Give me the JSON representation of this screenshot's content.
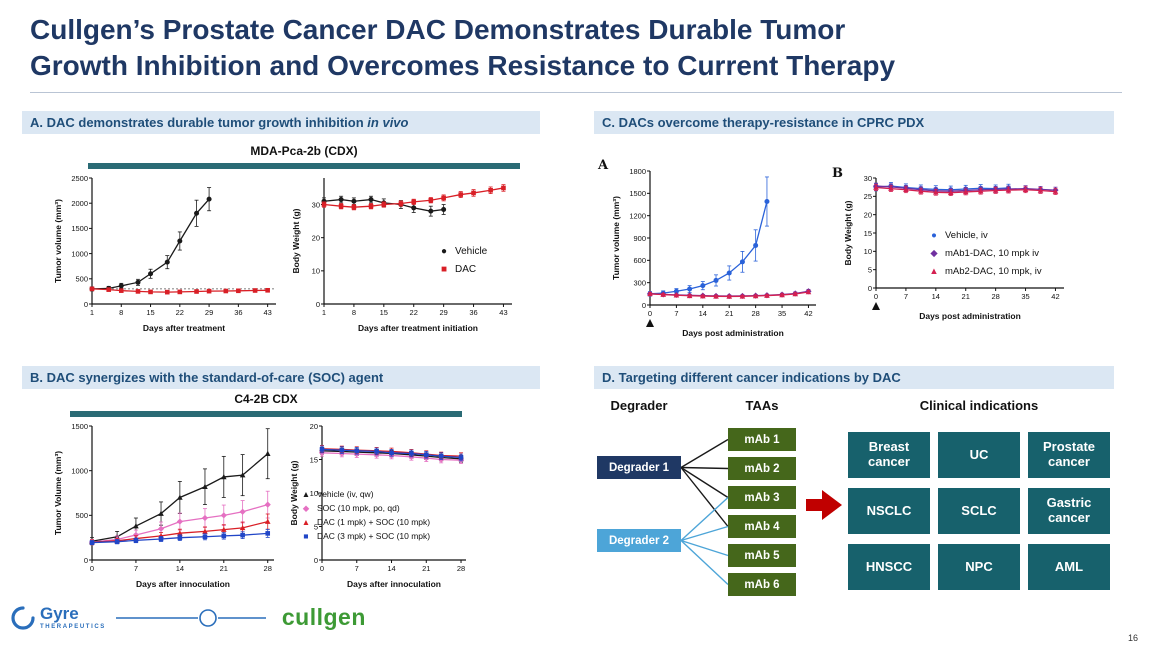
{
  "slide": {
    "title_line1": "Cullgen’s Prostate Cancer DAC Demonstrates Durable Tumor",
    "title_line2": "Growth Inhibition and Overcomes Resistance to Current Therapy"
  },
  "panels": {
    "a": {
      "header": "A. DAC demonstrates durable tumor growth inhibition ",
      "header_italic": "in vivo",
      "chart_title": "MDA-Pca-2b (CDX)",
      "legend": [
        {
          "marker": "●",
          "color": "#1a1a1a",
          "label": "Vehicle"
        },
        {
          "marker": "■",
          "color": "#d91f26",
          "label": "DAC"
        }
      ]
    },
    "b": {
      "header": "B. DAC synergizes with the standard-of-care (SOC) agent",
      "chart_title": "C4-2B CDX",
      "legend": [
        {
          "marker": "▲",
          "color": "#1a1a1a",
          "label": "Vehicle (iv, qw)"
        },
        {
          "marker": "◆",
          "color": "#e570c2",
          "label": "SOC (10 mpk, po, qd)"
        },
        {
          "marker": "▲",
          "color": "#d91f26",
          "label": "DAC (1 mpk) + SOC (10 mpk)"
        },
        {
          "marker": "■",
          "color": "#2146c7",
          "label": "DAC (3 mpk) + SOC (10 mpk)"
        }
      ]
    },
    "c": {
      "header": "C. DACs overcome therapy-resistance in CPRC PDX",
      "sub_label_a": "A",
      "sub_label_b": "B",
      "legend": [
        {
          "marker": "●",
          "color": "#2a62d9",
          "label": "Vehicle, iv"
        },
        {
          "marker": "◆",
          "color": "#7030a0",
          "label": "mAb1-DAC, 10 mpk iv"
        },
        {
          "marker": "▲",
          "color": "#d42050",
          "label": "mAb2-DAC, 10 mpk, iv"
        }
      ]
    },
    "d": {
      "header": "D. Targeting different cancer indications by DAC"
    }
  },
  "chart_data": [
    {
      "type": "line",
      "panel": "A",
      "xlabel": "Days after treatment",
      "ylabel": "Tumor volume (mm³)",
      "xlim": [
        1,
        45
      ],
      "xticks": [
        1,
        8,
        15,
        22,
        29,
        36,
        43
      ],
      "ylim": [
        0,
        2500
      ],
      "yticks": [
        0,
        500,
        1000,
        1500,
        2000,
        2500
      ],
      "ref_line_y": 300,
      "m": {
        "l": 40,
        "r": 8,
        "t": 8,
        "b": 30
      },
      "series": [
        {
          "name": "Vehicle",
          "color": "#1a1a1a",
          "marker": "circle",
          "x": [
            1,
            5,
            8,
            12,
            15,
            19,
            22,
            26,
            29
          ],
          "y": [
            300,
            310,
            360,
            430,
            600,
            830,
            1250,
            1800,
            2080
          ],
          "err": [
            40,
            40,
            50,
            60,
            90,
            130,
            180,
            260,
            230
          ]
        },
        {
          "name": "DAC",
          "color": "#d91f26",
          "marker": "square",
          "x": [
            1,
            5,
            8,
            12,
            15,
            19,
            22,
            26,
            29,
            33,
            36,
            40,
            43
          ],
          "y": [
            300,
            285,
            265,
            250,
            240,
            235,
            240,
            248,
            255,
            258,
            262,
            268,
            272
          ],
          "err": [
            30,
            25,
            22,
            20,
            18,
            18,
            18,
            18,
            20,
            20,
            22,
            22,
            24
          ]
        }
      ]
    },
    {
      "type": "line",
      "panel": "A",
      "xlabel": "Days after treatment initiation",
      "ylabel": "Body Weight (g)",
      "xlim": [
        1,
        45
      ],
      "xticks": [
        1,
        8,
        15,
        22,
        29,
        36,
        43
      ],
      "ylim": [
        0,
        38
      ],
      "yticks": [
        0,
        10,
        20,
        30
      ],
      "m": {
        "l": 34,
        "r": 8,
        "t": 8,
        "b": 30
      },
      "series": [
        {
          "name": "Vehicle",
          "color": "#1a1a1a",
          "marker": "circle",
          "x": [
            1,
            5,
            8,
            12,
            15,
            19,
            22,
            26,
            29
          ],
          "y": [
            31,
            31.5,
            31,
            31.5,
            30.5,
            30,
            29,
            28,
            28.5
          ],
          "err": [
            1,
            1,
            1,
            1,
            1.2,
            1.2,
            1.4,
            1.5,
            1.5
          ]
        },
        {
          "name": "DAC",
          "color": "#d91f26",
          "marker": "square",
          "x": [
            1,
            5,
            8,
            12,
            15,
            19,
            22,
            26,
            29,
            33,
            36,
            40,
            43
          ],
          "y": [
            30,
            29.5,
            29.2,
            29.5,
            30,
            30.3,
            30.8,
            31.3,
            32,
            33,
            33.5,
            34.3,
            35
          ],
          "err": [
            0.8,
            0.8,
            0.8,
            0.8,
            0.8,
            0.8,
            0.8,
            0.8,
            0.9,
            0.9,
            1,
            1,
            1
          ]
        }
      ]
    },
    {
      "type": "line",
      "panel": "B",
      "xlabel": "Days after innoculation",
      "ylabel": "Tumor Volume (mm³)",
      "xlim": [
        0,
        29
      ],
      "xticks": [
        0,
        7,
        14,
        21,
        28
      ],
      "ylim": [
        0,
        1500
      ],
      "yticks": [
        0,
        500,
        1000,
        1500
      ],
      "m": {
        "l": 40,
        "r": 8,
        "t": 8,
        "b": 30
      },
      "series": [
        {
          "name": "Vehicle (iv, qw)",
          "color": "#1a1a1a",
          "marker": "triangle",
          "x": [
            0,
            4,
            7,
            11,
            14,
            18,
            21,
            24,
            28
          ],
          "y": [
            210,
            260,
            380,
            520,
            700,
            820,
            930,
            950,
            1190
          ],
          "err": [
            40,
            60,
            90,
            130,
            180,
            200,
            230,
            230,
            280
          ]
        },
        {
          "name": "SOC (10 mpk, po, qd)",
          "color": "#e570c2",
          "marker": "diamond",
          "x": [
            0,
            4,
            7,
            11,
            14,
            18,
            21,
            24,
            28
          ],
          "y": [
            200,
            230,
            280,
            350,
            430,
            470,
            500,
            540,
            620
          ],
          "err": [
            30,
            40,
            55,
            75,
            95,
            105,
            115,
            125,
            150
          ]
        },
        {
          "name": "DAC (1 mpk) + SOC (10 mpk)",
          "color": "#d91f26",
          "marker": "triangle",
          "x": [
            0,
            4,
            7,
            11,
            14,
            18,
            21,
            24,
            28
          ],
          "y": [
            200,
            215,
            240,
            270,
            300,
            320,
            340,
            360,
            430
          ],
          "err": [
            25,
            28,
            32,
            38,
            45,
            50,
            55,
            65,
            85
          ]
        },
        {
          "name": "DAC (3 mpk) + SOC (10 mpk)",
          "color": "#2146c7",
          "marker": "square",
          "x": [
            0,
            4,
            7,
            11,
            14,
            18,
            21,
            24,
            28
          ],
          "y": [
            195,
            205,
            220,
            235,
            250,
            260,
            270,
            278,
            298
          ],
          "err": [
            22,
            24,
            26,
            28,
            32,
            34,
            36,
            38,
            45
          ]
        }
      ]
    },
    {
      "type": "line",
      "panel": "B",
      "xlabel": "Days after innoculation",
      "ylabel": "Body Weight (g)",
      "xlim": [
        0,
        29
      ],
      "xticks": [
        0,
        7,
        14,
        21,
        28
      ],
      "ylim": [
        0,
        20
      ],
      "yticks": [
        0,
        5,
        10,
        15,
        20
      ],
      "m": {
        "l": 34,
        "r": 8,
        "t": 8,
        "b": 30
      },
      "series": [
        {
          "name": "Vehicle (iv, qw)",
          "color": "#1a1a1a",
          "marker": "triangle",
          "x": [
            0,
            4,
            7,
            11,
            14,
            18,
            21,
            24,
            28
          ],
          "y": [
            16.3,
            16.2,
            16.1,
            16,
            15.9,
            15.7,
            15.5,
            15.3,
            15.1
          ],
          "err": [
            0.5,
            0.5,
            0.5,
            0.5,
            0.5,
            0.5,
            0.5,
            0.5,
            0.5
          ]
        },
        {
          "name": "SOC (10 mpk, po, qd)",
          "color": "#e570c2",
          "marker": "diamond",
          "x": [
            0,
            4,
            7,
            11,
            14,
            18,
            21,
            24,
            28
          ],
          "y": [
            16,
            15.9,
            15.8,
            15.7,
            15.6,
            15.4,
            15.2,
            15,
            14.9
          ],
          "err": [
            0.5,
            0.5,
            0.5,
            0.5,
            0.5,
            0.5,
            0.5,
            0.5,
            0.5
          ]
        },
        {
          "name": "DAC (1 mpk) + SOC (10 mpk)",
          "color": "#d91f26",
          "marker": "triangle",
          "x": [
            0,
            4,
            7,
            11,
            14,
            18,
            21,
            24,
            28
          ],
          "y": [
            16.6,
            16.5,
            16.4,
            16.3,
            16.2,
            16,
            15.8,
            15.6,
            15.5
          ],
          "err": [
            0.5,
            0.5,
            0.5,
            0.5,
            0.5,
            0.5,
            0.5,
            0.5,
            0.5
          ]
        },
        {
          "name": "DAC (3 mpk) + SOC (10 mpk)",
          "color": "#2146c7",
          "marker": "square",
          "x": [
            0,
            4,
            7,
            11,
            14,
            18,
            21,
            24,
            28
          ],
          "y": [
            16.5,
            16.4,
            16.3,
            16.2,
            16,
            15.9,
            15.7,
            15.5,
            15.3
          ],
          "err": [
            0.5,
            0.5,
            0.5,
            0.5,
            0.5,
            0.5,
            0.5,
            0.5,
            0.5
          ]
        }
      ]
    },
    {
      "type": "line",
      "panel": "C",
      "sub_label": "A",
      "xlabel": "Days post administration",
      "ylabel": "Tumor volume (mm³)",
      "xlim": [
        0,
        44
      ],
      "xticks": [
        0,
        7,
        14,
        21,
        28,
        35,
        42
      ],
      "ylim": [
        0,
        1800
      ],
      "yticks": [
        0,
        300,
        600,
        900,
        1200,
        1500,
        1800
      ],
      "dose_arrow_x": 0,
      "m": {
        "l": 40,
        "r": 8,
        "t": 8,
        "b": 34
      },
      "series": [
        {
          "name": "Vehicle, iv",
          "color": "#2a62d9",
          "marker": "circle",
          "x": [
            0,
            3.5,
            7,
            10.5,
            14,
            17.5,
            21,
            24.5,
            28,
            31
          ],
          "y": [
            150,
            160,
            185,
            215,
            260,
            330,
            430,
            580,
            800,
            1390
          ],
          "err": [
            30,
            30,
            35,
            45,
            55,
            75,
            95,
            140,
            210,
            330
          ]
        },
        {
          "name": "mAb1-DAC, 10 mpk iv",
          "color": "#7030a0",
          "marker": "diamond",
          "x": [
            0,
            3.5,
            7,
            10.5,
            14,
            17.5,
            21,
            24.5,
            28,
            31,
            35,
            38.5,
            42
          ],
          "y": [
            150,
            142,
            135,
            130,
            126,
            122,
            120,
            122,
            126,
            131,
            140,
            155,
            185
          ],
          "err": [
            15,
            15,
            15,
            15,
            15,
            15,
            15,
            15,
            15,
            15,
            18,
            20,
            25
          ]
        },
        {
          "name": "mAb2-DAC, 10 mpk, iv",
          "color": "#d42050",
          "marker": "triangle",
          "x": [
            0,
            3.5,
            7,
            10.5,
            14,
            17.5,
            21,
            24.5,
            28,
            31,
            35,
            38.5,
            42
          ],
          "y": [
            150,
            140,
            131,
            124,
            120,
            117,
            115,
            117,
            121,
            127,
            135,
            148,
            175
          ],
          "err": [
            15,
            15,
            14,
            14,
            13,
            13,
            13,
            13,
            14,
            14,
            16,
            18,
            22
          ]
        }
      ]
    },
    {
      "type": "line",
      "panel": "C",
      "sub_label": "B",
      "xlabel": "Days post administration",
      "ylabel": "Body Weight (g)",
      "xlim": [
        0,
        44
      ],
      "xticks": [
        0,
        7,
        14,
        21,
        28,
        35,
        42
      ],
      "ylim": [
        0,
        30
      ],
      "yticks": [
        0,
        5,
        10,
        15,
        20,
        25,
        30
      ],
      "dose_arrow_x": 0,
      "m": {
        "l": 34,
        "r": 8,
        "t": 8,
        "b": 34
      },
      "series": [
        {
          "name": "Vehicle, iv",
          "color": "#2a62d9",
          "marker": "circle",
          "x": [
            0,
            3.5,
            7,
            10.5,
            14,
            17.5,
            21,
            24.5,
            28,
            31
          ],
          "y": [
            27.5,
            27.8,
            27.4,
            27.1,
            26.9,
            26.8,
            27,
            27.2,
            27.1,
            27.3
          ],
          "err": [
            1,
            1,
            1,
            1,
            1,
            1,
            1,
            1,
            1,
            1
          ]
        },
        {
          "name": "mAb1-DAC, 10 mpk iv",
          "color": "#7030a0",
          "marker": "diamond",
          "x": [
            0,
            3.5,
            7,
            10.5,
            14,
            17.5,
            21,
            24.5,
            28,
            31,
            35,
            38.5,
            42
          ],
          "y": [
            27.8,
            27.6,
            27.2,
            26.8,
            26.5,
            26.4,
            26.6,
            26.8,
            26.9,
            27,
            27.1,
            26.9,
            26.7
          ],
          "err": [
            0.8,
            0.8,
            0.8,
            0.8,
            0.8,
            0.8,
            0.8,
            0.8,
            0.8,
            0.8,
            0.8,
            0.8,
            0.8
          ]
        },
        {
          "name": "mAb2-DAC, 10 mpk, iv",
          "color": "#d42050",
          "marker": "triangle",
          "x": [
            0,
            3.5,
            7,
            10.5,
            14,
            17.5,
            21,
            24.5,
            28,
            31,
            35,
            38.5,
            42
          ],
          "y": [
            27.4,
            27.1,
            26.8,
            26.4,
            26.1,
            26,
            26.2,
            26.4,
            26.6,
            26.7,
            26.8,
            26.6,
            26.3
          ],
          "err": [
            0.8,
            0.8,
            0.8,
            0.8,
            0.8,
            0.8,
            0.8,
            0.8,
            0.8,
            0.8,
            0.8,
            0.8,
            0.8
          ]
        }
      ]
    }
  ],
  "diagram": {
    "column_headers": [
      "Degrader",
      "TAAs",
      "Clinical indications"
    ],
    "degraders": [
      {
        "label": "Degrader 1",
        "color": "#1f3864"
      },
      {
        "label": "Degrader 2",
        "color": "#4da5d8"
      }
    ],
    "taas": [
      "mAb 1",
      "mAb 2",
      "mAb 3",
      "mAb 4",
      "mAb 5",
      "mAb 6"
    ],
    "taa_color": "#45671b",
    "connections": [
      {
        "from": 0,
        "to": [
          0,
          1,
          2,
          3
        ],
        "color": "#1a1a1a"
      },
      {
        "from": 1,
        "to": [
          2,
          3,
          4,
          5
        ],
        "color": "#4da5d8"
      }
    ],
    "arrow_color": "#c00000",
    "indications": [
      [
        "Breast cancer",
        "UC",
        "Prostate cancer"
      ],
      [
        "NSCLC",
        "SCLC",
        "Gastric cancer"
      ],
      [
        "HNSCC",
        "NPC",
        "AML"
      ]
    ],
    "indication_color": "#17616c"
  },
  "colors": {
    "title_navy": "#1f3864",
    "panel_header_bg": "#dbe7f3",
    "panel_header_text": "#1f4e79",
    "teal_bar": "#2a6b75"
  },
  "footer": {
    "gyre_name": "Gyre",
    "gyre_sub": "THERAPEUTICS",
    "cullgen": "cullgen",
    "page_number": "16"
  }
}
